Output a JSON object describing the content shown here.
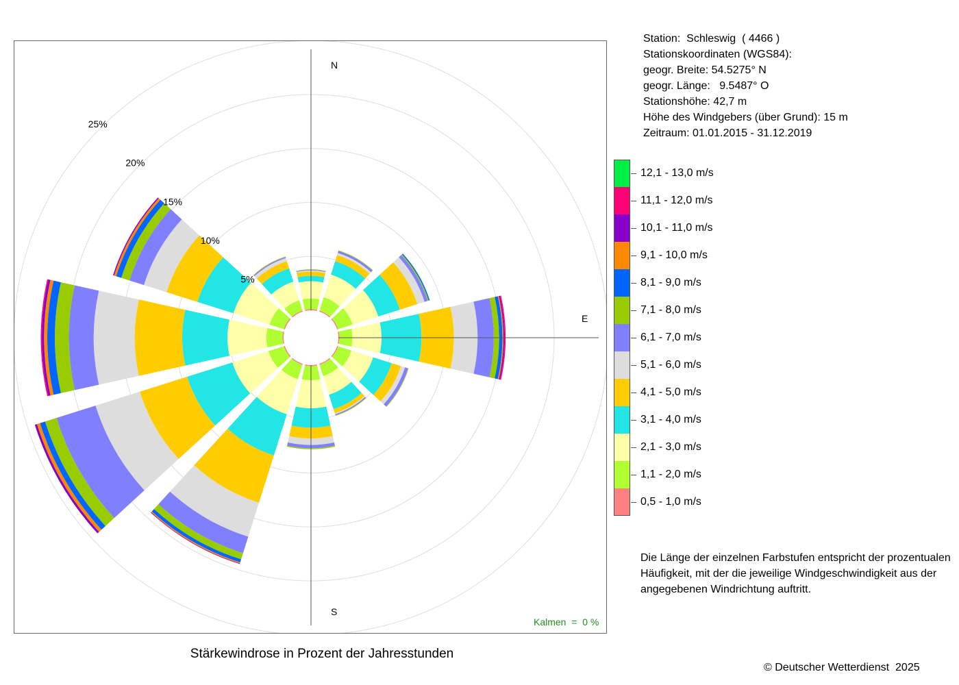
{
  "station": {
    "line1": "Station:  Schleswig  ( 4466 )",
    "line2": "Stationskoordinaten (WGS84):",
    "line3": "geogr. Breite: 54.5275° N",
    "line4": "geogr. Länge:   9.5487° O",
    "line5": "Stationshöhe: 42,7 m",
    "line6": "Höhe des Windgebers (über Grund): 15 m",
    "line7": "Zeitraum: 01.01.2015 - 31.12.2019"
  },
  "legend": [
    {
      "label": "12,1 - 13,0 m/s",
      "color": "#00ee44"
    },
    {
      "label": "11,1 - 12,0 m/s",
      "color": "#ff0077"
    },
    {
      "label": "10,1 - 11,0 m/s",
      "color": "#8800cc"
    },
    {
      "label": "9,1 - 10,0 m/s",
      "color": "#ff8800"
    },
    {
      "label": "8,1 - 9,0 m/s",
      "color": "#0066ff"
    },
    {
      "label": "7,1 - 8,0 m/s",
      "color": "#99cc00"
    },
    {
      "label": "6,1 - 7,0 m/s",
      "color": "#8080ff"
    },
    {
      "label": "5,1 - 6,0 m/s",
      "color": "#dddddd"
    },
    {
      "label": "4,1 - 5,0 m/s",
      "color": "#ffcc00"
    },
    {
      "label": "3,1 - 4,0 m/s",
      "color": "#22e5e5"
    },
    {
      "label": "2,1 - 3,0 m/s",
      "color": "#ffffaa"
    },
    {
      "label": "1,1 - 2,0 m/s",
      "color": "#b0ff30"
    },
    {
      "label": "0,5 - 1,0 m/s",
      "color": "#ff8080"
    }
  ],
  "note": "Die Länge der einzelnen Farbstufen entspricht der prozentualen Häufigkeit, mit der die jeweilige Windgeschwindigkeit aus der angegebenen Windrichtung auftritt.",
  "calm": "Kalmen  =  0 %",
  "title": "Stärkewindrose in Prozent der Jahresstunden",
  "copyright": "© Deutscher Wetterdienst  2025",
  "chart_data": {
    "type": "wind-rose",
    "unit": "%",
    "ring_labels": [
      "5%",
      "10%",
      "15%",
      "20%",
      "25%"
    ],
    "rings": [
      5,
      10,
      15,
      20,
      25
    ],
    "direction_labels": [
      "N",
      "E",
      "S"
    ],
    "speed_classes": [
      "0,5 - 1,0 m/s",
      "1,1 - 2,0 m/s",
      "2,1 - 3,0 m/s",
      "3,1 - 4,0 m/s",
      "4,1 - 5,0 m/s",
      "5,1 - 6,0 m/s",
      "6,1 - 7,0 m/s",
      "7,1 - 8,0 m/s",
      "8,1 - 9,0 m/s",
      "9,1 - 10,0 m/s",
      "10,1 - 11,0 m/s",
      "11,1 - 12,0 m/s",
      "12,1 - 13,0 m/s"
    ],
    "sectors": [
      {
        "dir": 0,
        "values": [
          0.1,
          1.0,
          1.6,
          0.5,
          0.4,
          0.1,
          0.05,
          0.05,
          0,
          0,
          0,
          0,
          0
        ]
      },
      {
        "dir": 30,
        "values": [
          0.1,
          1.3,
          2.2,
          1.3,
          0.6,
          0.2,
          0.2,
          0.05,
          0,
          0,
          0,
          0,
          0
        ]
      },
      {
        "dir": 60,
        "values": [
          0.1,
          1.4,
          2.5,
          2.1,
          1.7,
          0.7,
          0.3,
          0.1,
          0.1,
          0,
          0,
          0,
          0
        ]
      },
      {
        "dir": 90,
        "values": [
          0.1,
          1.2,
          2.7,
          3.7,
          3.0,
          2.2,
          1.5,
          0.5,
          0.3,
          0.1,
          0.1,
          0.1,
          0
        ]
      },
      {
        "dir": 120,
        "values": [
          0.1,
          1.3,
          2.1,
          1.8,
          0.9,
          0.4,
          0.3,
          0.05,
          0,
          0,
          0,
          0,
          0
        ]
      },
      {
        "dir": 150,
        "values": [
          0.1,
          1.1,
          1.8,
          1.4,
          0.4,
          0.1,
          0.1,
          0.05,
          0,
          0,
          0,
          0,
          0
        ]
      },
      {
        "dir": 180,
        "values": [
          0.1,
          1.3,
          2.6,
          1.8,
          1.0,
          0.6,
          0.3,
          0.1,
          0,
          0,
          0,
          0,
          0
        ]
      },
      {
        "dir": 210,
        "values": [
          0.1,
          1.4,
          3.4,
          4.0,
          4.6,
          3.3,
          1.6,
          0.6,
          0.3,
          0.1,
          0.05,
          0,
          0
        ]
      },
      {
        "dir": 240,
        "values": [
          0.1,
          1.5,
          3.5,
          4.4,
          4.6,
          4.3,
          3.8,
          1.1,
          0.5,
          0.3,
          0.2,
          0,
          0
        ]
      },
      {
        "dir": 270,
        "values": [
          0.1,
          1.5,
          3.6,
          4.2,
          4.4,
          3.8,
          2.3,
          1.3,
          0.7,
          0.3,
          0.2,
          0.1,
          0
        ]
      },
      {
        "dir": 300,
        "values": [
          0.1,
          1.4,
          3.5,
          3.5,
          3.0,
          2.2,
          1.4,
          0.8,
          0.5,
          0.2,
          0.1,
          0,
          0
        ]
      },
      {
        "dir": 330,
        "values": [
          0.1,
          1.0,
          1.8,
          1.3,
          0.7,
          0.3,
          0.1,
          0.05,
          0,
          0,
          0,
          0,
          0
        ]
      }
    ],
    "grid": true
  }
}
